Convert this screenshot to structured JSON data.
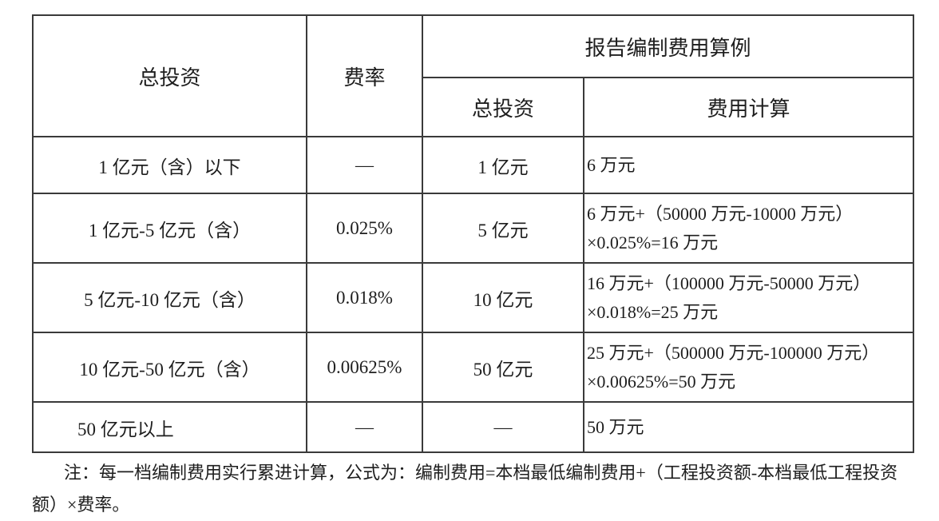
{
  "headers": {
    "total_investment": "总投资",
    "rate": "费率",
    "example_group": "报告编制费用算例",
    "example_investment": "总投资",
    "fee_calculation": "费用计算"
  },
  "rows": [
    {
      "range": "1 亿元（含）以下",
      "rate": "—",
      "investment": "1 亿元",
      "calc_line1": "6 万元",
      "calc_line2": ""
    },
    {
      "range": "1 亿元-5 亿元（含）",
      "rate": "0.025%",
      "investment": "5 亿元",
      "calc_line1": "6 万元+（50000 万元-10000 万元）",
      "calc_line2": "×0.025%=16 万元"
    },
    {
      "range": "5 亿元-10 亿元（含）",
      "rate": "0.018%",
      "investment": "10 亿元",
      "calc_line1": "16 万元+（100000 万元-50000 万元）",
      "calc_line2": "×0.018%=25 万元"
    },
    {
      "range": "10 亿元-50 亿元（含）",
      "rate": "0.00625%",
      "investment": "50 亿元",
      "calc_line1": "25 万元+（500000 万元-100000 万元）",
      "calc_line2": "×0.00625%=50 万元"
    },
    {
      "range": "50 亿元以上",
      "rate": "—",
      "investment": "—",
      "calc_line1": "50 万元",
      "calc_line2": ""
    }
  ],
  "note": "注：每一档编制费用实行累进计算，公式为：编制费用=本档最低编制费用+（工程投资额-本档最低工程投资额）×费率。"
}
